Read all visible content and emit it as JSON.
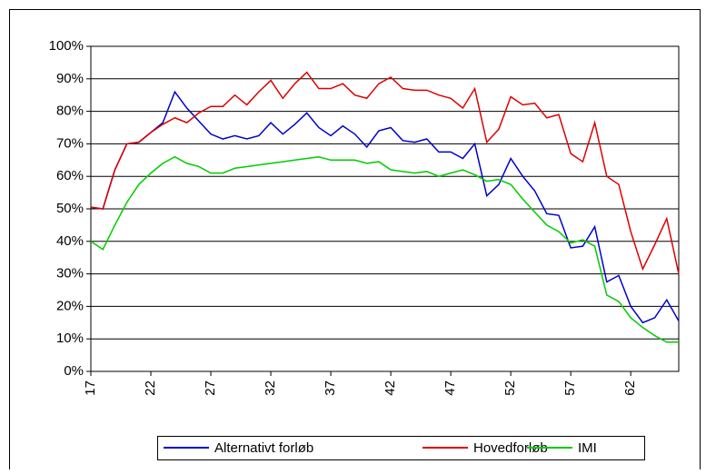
{
  "chart_data": {
    "type": "line",
    "x": [
      17,
      18,
      19,
      20,
      21,
      22,
      23,
      24,
      25,
      26,
      27,
      28,
      29,
      30,
      31,
      32,
      33,
      34,
      35,
      36,
      37,
      38,
      39,
      40,
      41,
      42,
      43,
      44,
      45,
      46,
      47,
      48,
      49,
      50,
      51,
      52,
      53,
      54,
      55,
      56,
      57,
      58,
      59,
      60,
      61,
      62,
      63,
      64,
      65,
      66
    ],
    "series": [
      {
        "name": "Alternativt forløb",
        "color": "#0000cc",
        "values": [
          50.5,
          50,
          62,
          70,
          70.5,
          73.5,
          76.5,
          86,
          81,
          77,
          73,
          71.5,
          72.5,
          71.5,
          72.5,
          76.5,
          73,
          76,
          79.5,
          75,
          72.5,
          75.5,
          73,
          69,
          74,
          75,
          71,
          70.5,
          71.5,
          67.5,
          67.5,
          65.5,
          70,
          54,
          57.5,
          65.5,
          60,
          55.5,
          48.5,
          48,
          38,
          38.5,
          44.5,
          27.5,
          29.5,
          20,
          15,
          16.5,
          22,
          15.5
        ]
      },
      {
        "name": "Hovedforløb",
        "color": "#dd0000",
        "values": [
          50.5,
          50,
          62,
          70,
          70.5,
          73.5,
          76,
          78,
          76.5,
          79.5,
          81.5,
          81.5,
          85,
          82,
          86,
          89.5,
          84,
          88.5,
          92,
          87,
          87,
          88.5,
          85,
          84,
          88.5,
          90.5,
          87,
          86.5,
          86.5,
          85,
          84,
          81,
          87,
          70.5,
          74.5,
          84.5,
          82,
          82.5,
          78,
          79,
          67,
          64.5,
          76.5,
          60,
          57.5,
          43,
          31.5,
          39,
          47,
          30
        ]
      },
      {
        "name": "IMI",
        "color": "#00cc00",
        "values": [
          40,
          37.5,
          45,
          52,
          57.5,
          61,
          64,
          66,
          64,
          63,
          61,
          61,
          62.5,
          63,
          63.5,
          64,
          64.5,
          65,
          65.5,
          66,
          65,
          65,
          65,
          64,
          64.5,
          62,
          61.5,
          61,
          61.5,
          60,
          61,
          62,
          60.5,
          58.5,
          59,
          57.5,
          53,
          49,
          45,
          43,
          39.5,
          40.5,
          38.5,
          23.5,
          21.5,
          16.5,
          13.5,
          11,
          9,
          9
        ]
      }
    ],
    "xlim": [
      17,
      66
    ],
    "xticks": [
      17,
      22,
      27,
      32,
      37,
      42,
      47,
      52,
      57,
      62
    ],
    "ylim": [
      0,
      100
    ],
    "yticks": [
      {
        "value": 0,
        "label": "0%"
      },
      {
        "value": 10,
        "label": "10%"
      },
      {
        "value": 20,
        "label": "20%"
      },
      {
        "value": 30,
        "label": "30%"
      },
      {
        "value": 40,
        "label": "40%"
      },
      {
        "value": 50,
        "label": "50%"
      },
      {
        "value": 60,
        "label": "60%"
      },
      {
        "value": 70,
        "label": "70%"
      },
      {
        "value": 80,
        "label": "80%"
      },
      {
        "value": 90,
        "label": "90%"
      },
      {
        "value": 100,
        "label": "100%"
      }
    ],
    "grid": true,
    "legend": "bottom"
  }
}
